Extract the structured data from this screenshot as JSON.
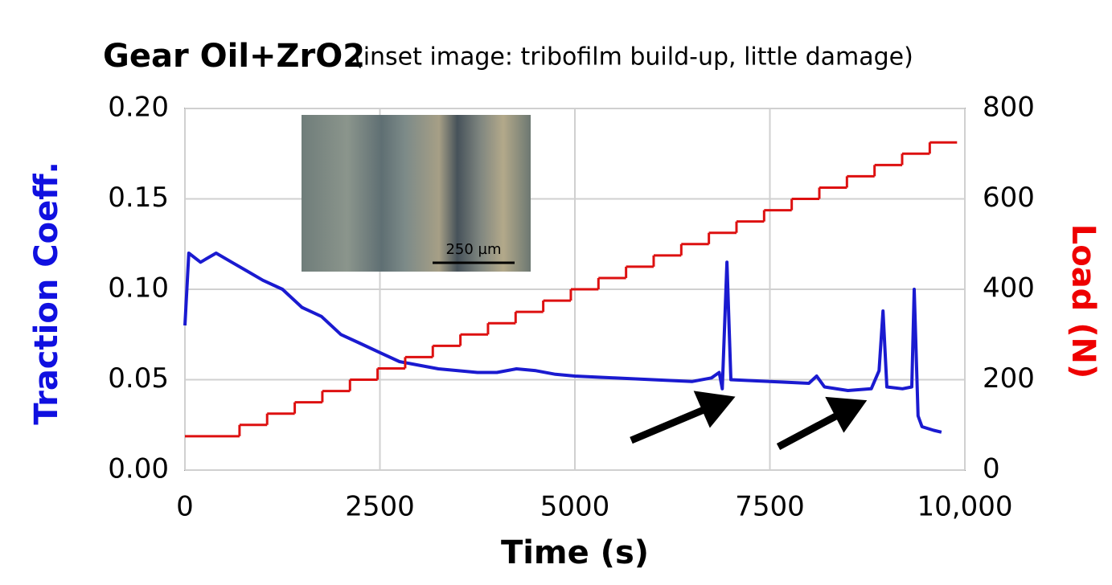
{
  "chart_data": {
    "type": "line",
    "title": "Gear Oil+ZrO2",
    "subtitle": "(inset image: tribofilm build-up, little damage)",
    "xlabel": "Time (s)",
    "ylabel": "Traction Coeff.",
    "y2label": "Load (N)",
    "inset_scale_label": "250 µm",
    "xlim": [
      0,
      10000
    ],
    "xticks": [
      0,
      2500,
      5000,
      7500,
      {
        "value": 10000,
        "label": "10,000"
      }
    ],
    "ylim": [
      0,
      0.2
    ],
    "yticks": [
      {
        "value": 0,
        "label": "0.00"
      },
      {
        "value": 0.05,
        "label": "0.05"
      },
      {
        "value": 0.1,
        "label": "0.10"
      },
      {
        "value": 0.15,
        "label": "0.15"
      },
      {
        "value": 0.2,
        "label": "0.20"
      }
    ],
    "y2lim": [
      0,
      800
    ],
    "y2ticks": [
      0,
      200,
      400,
      600,
      800
    ],
    "grid": true,
    "ylabel_color": "#1010e0",
    "y2label_color": "#ee0000",
    "series": [
      {
        "color": "#1a1ad0",
        "axis": "y",
        "step": false,
        "x": [
          0,
          50,
          200,
          400,
          600,
          800,
          1000,
          1250,
          1500,
          1750,
          2000,
          2250,
          2500,
          2750,
          3000,
          3250,
          3500,
          3750,
          4000,
          4250,
          4500,
          4750,
          5000,
          5500,
          6000,
          6500,
          6750,
          6850,
          6890,
          6950,
          7000,
          7500,
          8000,
          8100,
          8200,
          8500,
          8800,
          8900,
          8950,
          9000,
          9200,
          9320,
          9350,
          9400,
          9450,
          9600,
          9700
        ],
        "values": [
          0.08,
          0.12,
          0.115,
          0.12,
          0.115,
          0.11,
          0.105,
          0.1,
          0.09,
          0.085,
          0.075,
          0.07,
          0.065,
          0.06,
          0.058,
          0.056,
          0.055,
          0.054,
          0.054,
          0.056,
          0.055,
          0.053,
          0.052,
          0.051,
          0.05,
          0.049,
          0.051,
          0.054,
          0.045,
          0.115,
          0.05,
          0.049,
          0.048,
          0.052,
          0.046,
          0.044,
          0.045,
          0.055,
          0.088,
          0.046,
          0.045,
          0.046,
          0.1,
          0.03,
          0.024,
          0.022,
          0.021
        ]
      },
      {
        "color": "#dd1010",
        "axis": "y2",
        "step": true,
        "x": [
          0,
          700,
          1054,
          1408,
          1762,
          2116,
          2470,
          2824,
          3178,
          3532,
          3886,
          4240,
          4594,
          4948,
          5302,
          5656,
          6010,
          6364,
          6718,
          7072,
          7426,
          7780,
          8134,
          8488,
          8842,
          9196,
          9550,
          9900
        ],
        "values": [
          75,
          100,
          125,
          150,
          175,
          200,
          225,
          250,
          275,
          300,
          325,
          350,
          375,
          400,
          425,
          450,
          475,
          500,
          525,
          550,
          575,
          600,
          625,
          650,
          675,
          700,
          725,
          725
        ]
      }
    ]
  }
}
